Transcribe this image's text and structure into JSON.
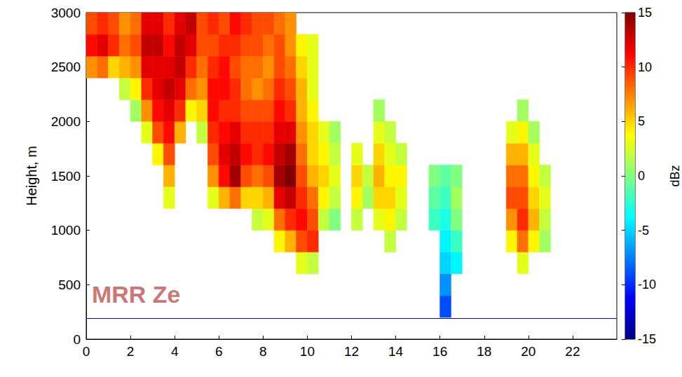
{
  "chart_data": {
    "type": "heatmap",
    "ylabel": "Height, m",
    "xlim": [
      0,
      24
    ],
    "xticks": [
      0,
      2,
      4,
      6,
      8,
      10,
      12,
      14,
      16,
      18,
      20,
      22
    ],
    "ylim": [
      0,
      3000
    ],
    "yticks": [
      0,
      500,
      1000,
      1500,
      2000,
      2500,
      3000
    ],
    "x_edges": [
      0,
      0.5,
      1,
      1.5,
      2,
      2.5,
      3,
      3.5,
      4,
      4.5,
      5,
      5.5,
      6,
      6.5,
      7,
      7.5,
      8,
      8.5,
      9,
      9.5,
      10,
      10.5,
      11,
      11.5,
      12,
      12.5,
      13,
      13.5,
      14,
      14.5,
      15,
      15.5,
      16,
      16.5,
      17,
      17.5,
      18,
      18.5,
      19,
      19.5,
      20,
      20.5,
      21
    ],
    "y_edges": [
      200,
      400,
      600,
      800,
      1000,
      1200,
      1400,
      1600,
      1800,
      2000,
      2200,
      2400,
      2600,
      2800,
      3000
    ],
    "z": [
      [
        null,
        null,
        null,
        null,
        null,
        null,
        null,
        null,
        null,
        null,
        null,
        7,
        11,
        9
      ],
      [
        null,
        null,
        null,
        null,
        null,
        null,
        null,
        null,
        null,
        null,
        null,
        8,
        12,
        10
      ],
      [
        null,
        null,
        null,
        null,
        null,
        null,
        null,
        null,
        null,
        null,
        null,
        5,
        10,
        9
      ],
      [
        null,
        null,
        null,
        null,
        null,
        null,
        null,
        null,
        null,
        null,
        2,
        6,
        8,
        7
      ],
      [
        null,
        null,
        null,
        null,
        null,
        null,
        null,
        null,
        null,
        1,
        4,
        7,
        9,
        8
      ],
      [
        null,
        null,
        null,
        null,
        null,
        null,
        null,
        null,
        3,
        7,
        10,
        12,
        13,
        12
      ],
      [
        null,
        null,
        null,
        null,
        null,
        null,
        null,
        4,
        9,
        11,
        12,
        12,
        13,
        12
      ],
      [
        null,
        null,
        null,
        null,
        null,
        3,
        6,
        9,
        11,
        12,
        13,
        12,
        11,
        10
      ],
      [
        null,
        null,
        null,
        null,
        null,
        null,
        null,
        null,
        6,
        10,
        12,
        13,
        13,
        12
      ],
      [
        null,
        null,
        null,
        null,
        null,
        null,
        null,
        null,
        null,
        4,
        8,
        10,
        12,
        13
      ],
      [
        null,
        null,
        null,
        null,
        null,
        null,
        null,
        null,
        2,
        5,
        7,
        8,
        9,
        9
      ],
      [
        null,
        null,
        null,
        null,
        null,
        3,
        7,
        9,
        10,
        11,
        11,
        10,
        9,
        10
      ],
      [
        null,
        null,
        null,
        null,
        null,
        6,
        11,
        12,
        11,
        10,
        11,
        11,
        10,
        9
      ],
      [
        null,
        null,
        null,
        null,
        null,
        8,
        14,
        13,
        12,
        10,
        10,
        9,
        10,
        11
      ],
      [
        null,
        null,
        null,
        null,
        null,
        5,
        9,
        11,
        10,
        9,
        8,
        8,
        9,
        10
      ],
      [
        null,
        null,
        null,
        null,
        2,
        5,
        8,
        10,
        10,
        9,
        7,
        8,
        9,
        9
      ],
      [
        null,
        null,
        null,
        null,
        3,
        6,
        9,
        11,
        10,
        9,
        8,
        7,
        8,
        9
      ],
      [
        null,
        null,
        null,
        4,
        8,
        12,
        14,
        13,
        12,
        11,
        10,
        9,
        9,
        8
      ],
      [
        null,
        null,
        null,
        6,
        10,
        13,
        15,
        14,
        12,
        10,
        9,
        8,
        7,
        7
      ],
      [
        null,
        null,
        3,
        9,
        11,
        10,
        9,
        8,
        7,
        6,
        6,
        5,
        4,
        null
      ],
      [
        null,
        null,
        2,
        10,
        9,
        8,
        6,
        5,
        5,
        4,
        3,
        3,
        3,
        null
      ],
      [
        null,
        null,
        null,
        null,
        2,
        4,
        5,
        4,
        3,
        null,
        null,
        null,
        null,
        null
      ],
      [
        null,
        null,
        null,
        null,
        0,
        2,
        3,
        2,
        1,
        null,
        null,
        null,
        null,
        null
      ],
      [
        null,
        null,
        null,
        null,
        null,
        null,
        null,
        null,
        null,
        null,
        null,
        null,
        null,
        null
      ],
      [
        null,
        null,
        null,
        null,
        2,
        4,
        5,
        3,
        null,
        null,
        null,
        null,
        null,
        null
      ],
      [
        null,
        null,
        null,
        null,
        null,
        1,
        2,
        null,
        null,
        null,
        null,
        null,
        null,
        null
      ],
      [
        null,
        null,
        null,
        null,
        3,
        5,
        6,
        5,
        3,
        1,
        null,
        null,
        null,
        null
      ],
      [
        null,
        null,
        null,
        2,
        4,
        5,
        4,
        3,
        2,
        null,
        null,
        null,
        null,
        null
      ],
      [
        null,
        null,
        null,
        null,
        2,
        3,
        4,
        2,
        null,
        null,
        null,
        null,
        null,
        null
      ],
      [
        null,
        null,
        null,
        null,
        null,
        null,
        null,
        null,
        null,
        null,
        null,
        null,
        null,
        null
      ],
      [
        null,
        null,
        null,
        null,
        null,
        null,
        null,
        null,
        null,
        null,
        null,
        null,
        null,
        null
      ],
      [
        null,
        null,
        null,
        null,
        -2,
        -1,
        0,
        null,
        null,
        null,
        null,
        null,
        null,
        null
      ],
      [
        -9,
        -7,
        -5,
        -4,
        -3,
        -2,
        -1,
        null,
        null,
        null,
        null,
        null,
        null,
        null
      ],
      [
        null,
        null,
        -4,
        -2,
        0,
        1,
        0,
        null,
        null,
        null,
        null,
        null,
        null,
        null
      ],
      [
        null,
        null,
        null,
        null,
        null,
        null,
        null,
        null,
        null,
        null,
        null,
        null,
        null,
        null
      ],
      [
        null,
        null,
        null,
        null,
        null,
        null,
        null,
        null,
        null,
        null,
        null,
        null,
        null,
        null
      ],
      [
        null,
        null,
        null,
        null,
        null,
        null,
        null,
        null,
        null,
        null,
        null,
        null,
        null,
        null
      ],
      [
        null,
        null,
        null,
        null,
        null,
        null,
        null,
        null,
        null,
        null,
        null,
        null,
        null,
        null
      ],
      [
        null,
        null,
        null,
        4,
        7,
        9,
        8,
        6,
        3,
        null,
        null,
        null,
        null,
        null
      ],
      [
        null,
        null,
        3,
        8,
        10,
        9,
        8,
        6,
        4,
        1,
        null,
        null,
        null,
        null
      ],
      [
        null,
        null,
        null,
        4,
        6,
        5,
        4,
        3,
        1,
        null,
        null,
        null,
        null,
        null
      ],
      [
        null,
        null,
        null,
        1,
        2,
        3,
        2,
        null,
        null,
        null,
        null,
        null,
        null,
        null
      ]
    ],
    "colorbar": {
      "label": "dBz",
      "range": [
        -15,
        15
      ],
      "ticks": [
        -15,
        -10,
        -5,
        0,
        5,
        10,
        15
      ]
    },
    "reference_line": {
      "y": 190
    },
    "annotations": [
      {
        "text": "MRR Ze",
        "x": 0.25,
        "y": 410
      }
    ]
  }
}
